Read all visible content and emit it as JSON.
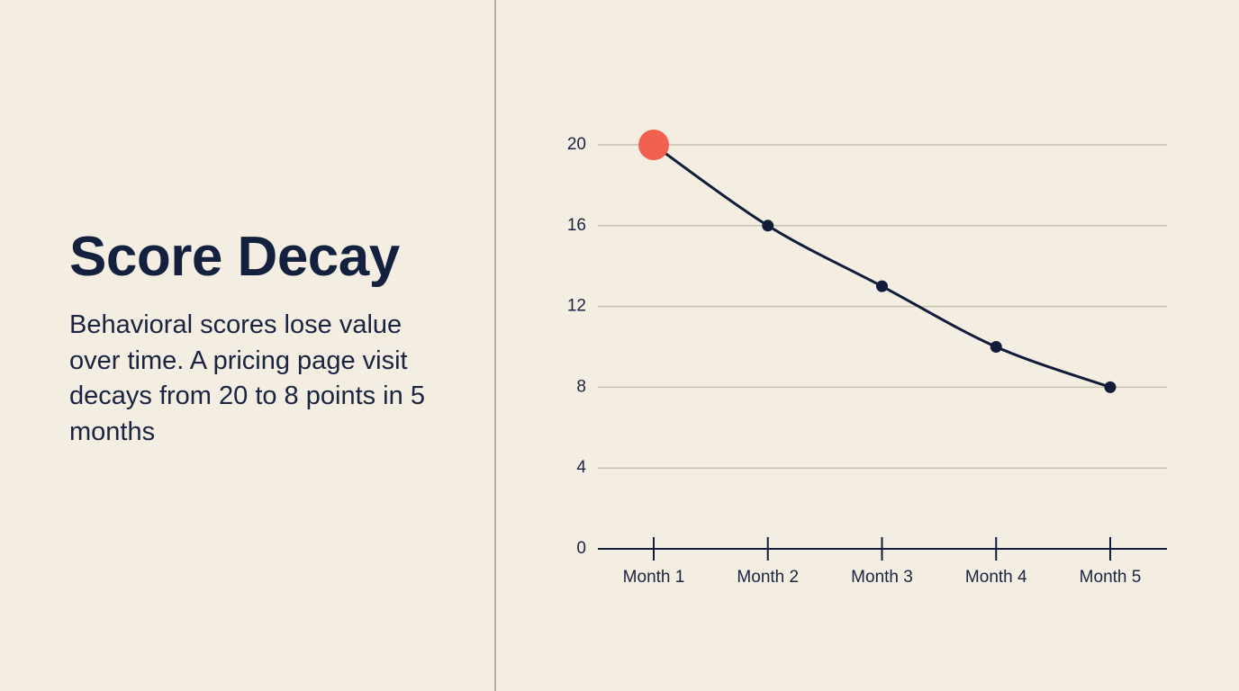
{
  "header": {
    "title": "Score Decay",
    "text": "Behavioral scores lose value over time. A pricing page visit decays from 20 to 8 points in 5 months"
  },
  "chart_data": {
    "type": "line",
    "categories": [
      "Month 1",
      "Month 2",
      "Month 3",
      "Month 4",
      "Month 5"
    ],
    "series": [
      {
        "name": "Score",
        "color": "#111c3a",
        "values": [
          20,
          16,
          13,
          10,
          8
        ]
      }
    ],
    "highlight": {
      "index": 0,
      "color": "#f2604f"
    },
    "ylim": [
      0,
      20
    ],
    "yticks": [
      0,
      4,
      8,
      12,
      16,
      20
    ],
    "grid": true
  }
}
